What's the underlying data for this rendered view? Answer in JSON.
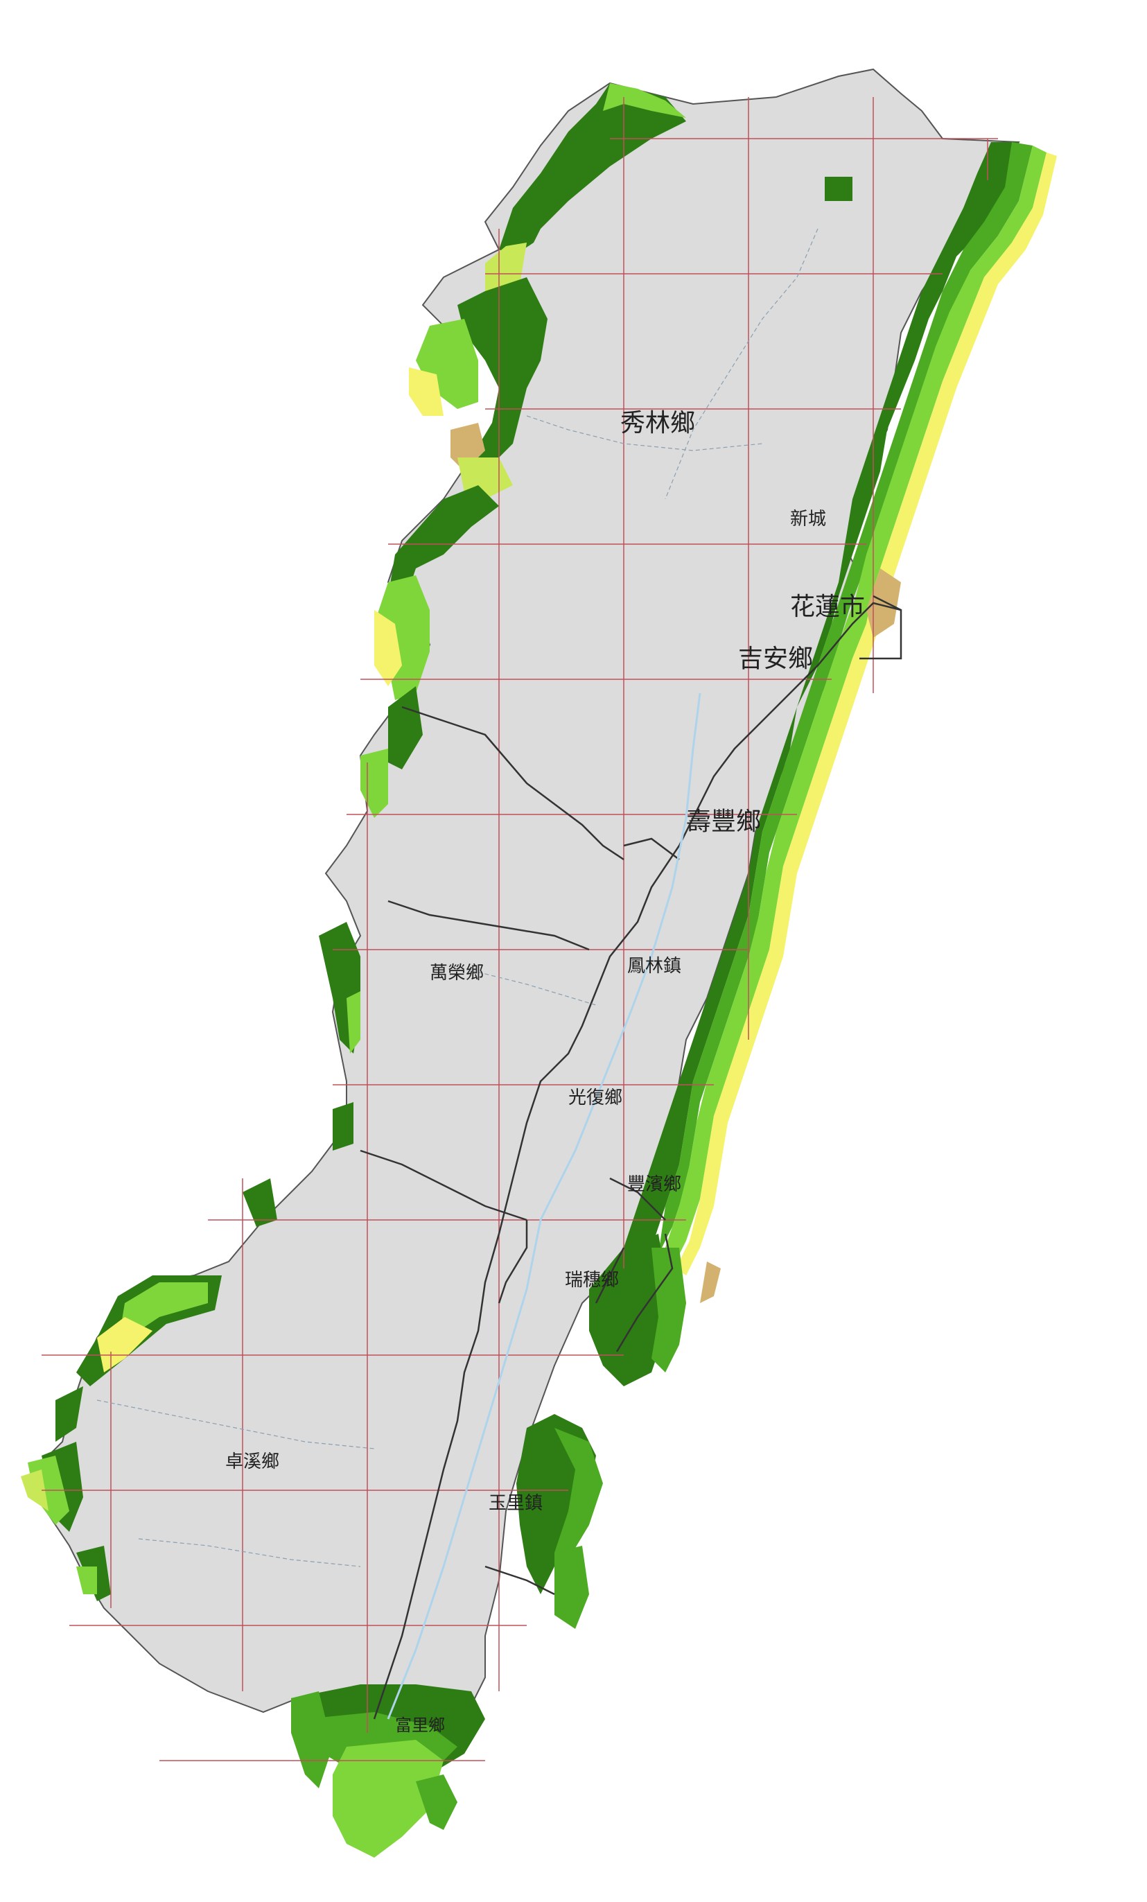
{
  "map": {
    "colors": {
      "land": "#dcdcdc",
      "border": "#333333",
      "grid": "#c0505a",
      "river": "#aed4ec",
      "dark_green": "#2e7d14",
      "mid_green": "#4cab22",
      "light_green": "#7fd63b",
      "yellow_green": "#c9e857",
      "yellow": "#f5f26b",
      "tan": "#d2b26e",
      "brown": "#8b5a2b"
    },
    "townships": [
      {
        "id": "xiulin",
        "name": "秀林鄉"
      },
      {
        "id": "xincheng",
        "name": "新城"
      },
      {
        "id": "hualien",
        "name": "花蓮市"
      },
      {
        "id": "jian",
        "name": "吉安鄉"
      },
      {
        "id": "shoufeng",
        "name": "壽豐鄉"
      },
      {
        "id": "wanrong",
        "name": "萬榮鄉"
      },
      {
        "id": "fenglin",
        "name": "鳳林鎮"
      },
      {
        "id": "guangfu",
        "name": "光復鄉"
      },
      {
        "id": "fengbin",
        "name": "豐濱鄉"
      },
      {
        "id": "ruisui",
        "name": "瑞穗鄉"
      },
      {
        "id": "zhuoxi",
        "name": "卓溪鄉"
      },
      {
        "id": "yuli",
        "name": "玉里鎮"
      },
      {
        "id": "fuli",
        "name": "富里鄉"
      }
    ]
  }
}
